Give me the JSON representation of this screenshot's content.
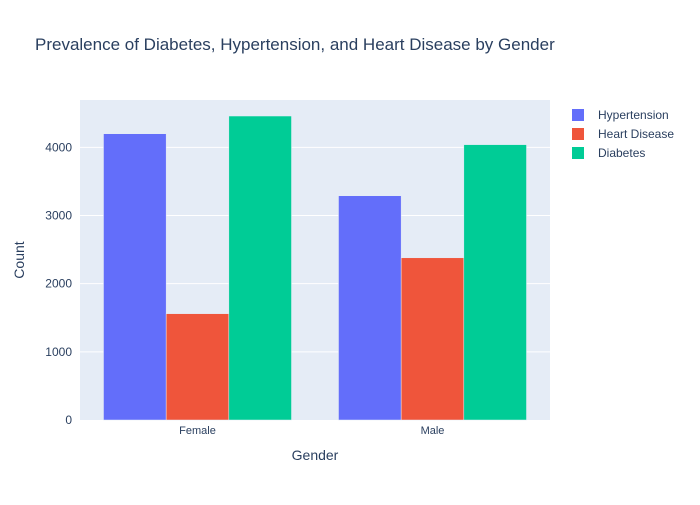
{
  "chart_data": {
    "type": "bar",
    "title": "Prevalence of Diabetes, Hypertension, and Heart Disease by Gender",
    "xlabel": "Gender",
    "ylabel": "Count",
    "categories": [
      "Female",
      "Male"
    ],
    "series": [
      {
        "name": "Hypertension",
        "color": "#636efa",
        "values": [
          4200,
          3290
        ]
      },
      {
        "name": "Heart Disease",
        "color": "#ef553b",
        "values": [
          1560,
          2380
        ]
      },
      {
        "name": "Diabetes",
        "color": "#00cc96",
        "values": [
          4460,
          4040
        ]
      }
    ],
    "ylim": [
      0,
      4695
    ],
    "yticks": [
      0,
      1000,
      2000,
      3000,
      4000
    ],
    "grid": true,
    "legend_position": "top-right",
    "plot_background": "#e5ecf6"
  }
}
